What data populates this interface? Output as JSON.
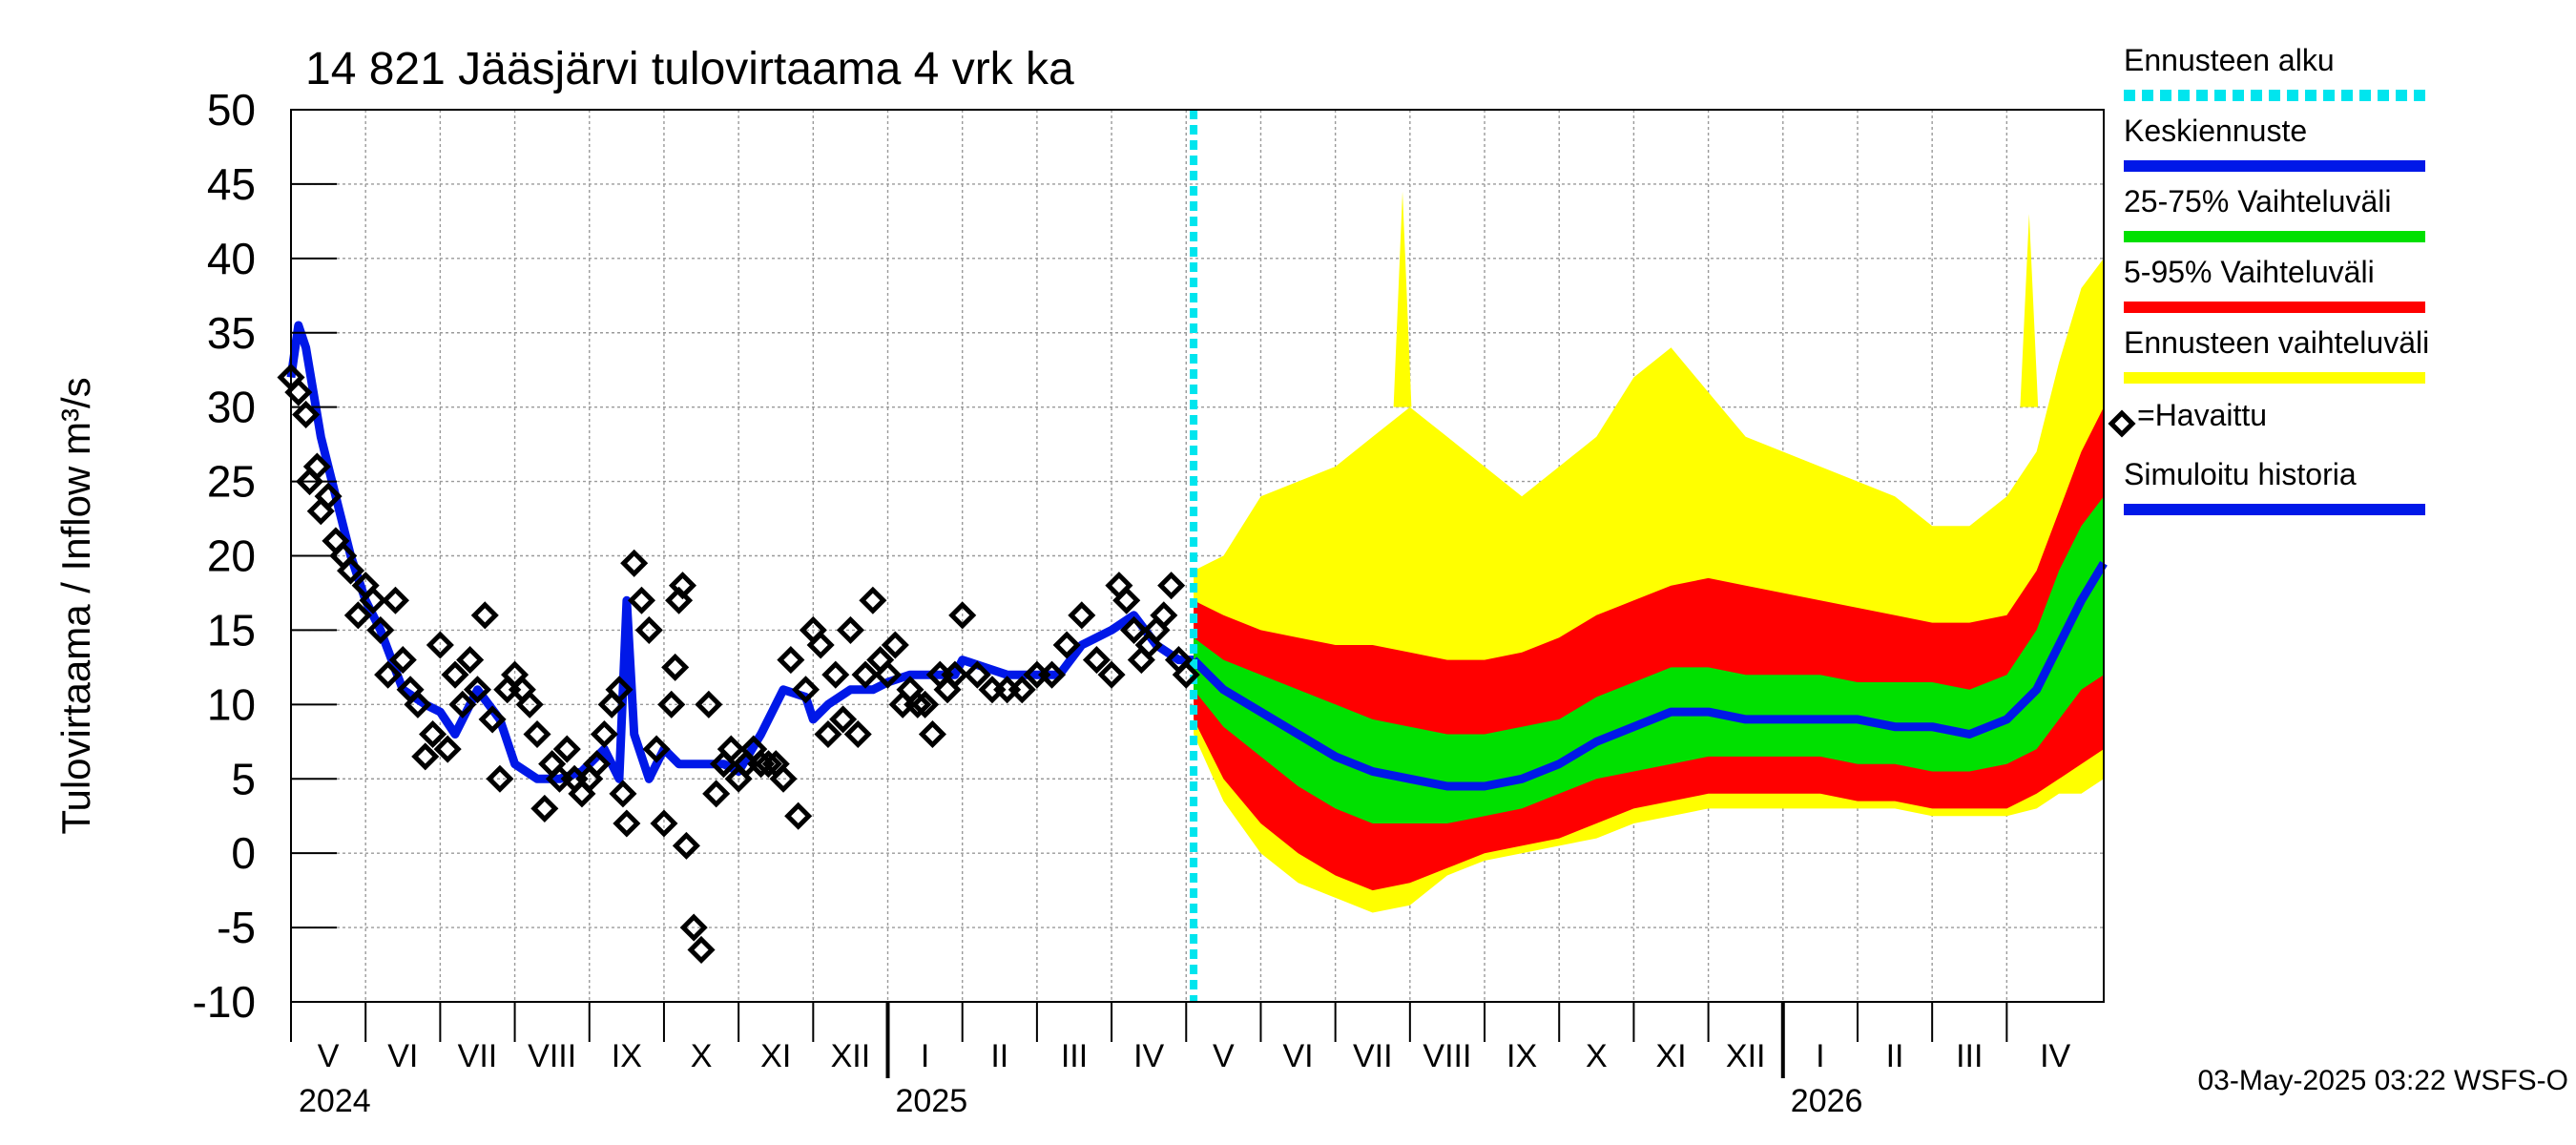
{
  "chart_data": {
    "type": "line",
    "title": "14 821 Jääsjärvi tulovirtaama 4 vrk ka",
    "ylabel": "Tulovirtaama / Inflow    m³/s",
    "ylim": [
      -10,
      50
    ],
    "yticks": [
      50,
      45,
      40,
      35,
      30,
      25,
      20,
      15,
      10,
      5,
      0,
      -5,
      -10
    ],
    "ytick_labels": [
      "50",
      "45",
      "40",
      "35",
      "30",
      "25",
      "20",
      "15",
      "10",
      "5",
      "0",
      "-5",
      "-10"
    ],
    "xlim": [
      0,
      24.3
    ],
    "months": [
      {
        "label": "V",
        "start": 0
      },
      {
        "label": "VI",
        "start": 1
      },
      {
        "label": "VII",
        "start": 2
      },
      {
        "label": "VIII",
        "start": 3
      },
      {
        "label": "IX",
        "start": 4
      },
      {
        "label": "X",
        "start": 5
      },
      {
        "label": "XI",
        "start": 6
      },
      {
        "label": "XII",
        "start": 7
      },
      {
        "label": "I",
        "start": 8
      },
      {
        "label": "II",
        "start": 9
      },
      {
        "label": "III",
        "start": 10
      },
      {
        "label": "IV",
        "start": 11
      },
      {
        "label": "V",
        "start": 12
      },
      {
        "label": "VI",
        "start": 13
      },
      {
        "label": "VII",
        "start": 14
      },
      {
        "label": "VIII",
        "start": 15
      },
      {
        "label": "IX",
        "start": 16
      },
      {
        "label": "X",
        "start": 17
      },
      {
        "label": "XI",
        "start": 18
      },
      {
        "label": "XII",
        "start": 19
      },
      {
        "label": "I",
        "start": 20
      },
      {
        "label": "II",
        "start": 21
      },
      {
        "label": "III",
        "start": 22
      },
      {
        "label": "IV",
        "start": 23
      }
    ],
    "years": [
      {
        "label": "2024",
        "at": 0
      },
      {
        "label": "2025",
        "at": 8
      },
      {
        "label": "2026",
        "at": 20
      }
    ],
    "forecast_start": 12.1,
    "forecast": {
      "x": [
        12.1,
        12.5,
        13,
        13.5,
        14,
        14.5,
        15,
        15.5,
        16,
        16.5,
        17,
        17.5,
        18,
        18.5,
        19,
        19.5,
        20,
        20.5,
        21,
        21.5,
        22,
        22.5,
        23,
        23.4,
        23.7,
        24,
        24.3
      ],
      "p50": [
        13,
        11,
        9.5,
        8,
        6.5,
        5.5,
        5,
        4.5,
        4.5,
        5,
        6,
        7.5,
        8.5,
        9.5,
        9.5,
        9,
        9,
        9,
        9,
        8.5,
        8.5,
        8,
        9,
        11,
        14,
        17,
        19.5
      ],
      "p25": [
        11,
        8.5,
        6.5,
        4.5,
        3,
        2,
        2,
        2,
        2.5,
        3,
        4,
        5,
        5.5,
        6,
        6.5,
        6.5,
        6.5,
        6.5,
        6,
        6,
        5.5,
        5.5,
        6,
        7,
        9,
        11,
        12
      ],
      "p75": [
        14.5,
        13,
        12,
        11,
        10,
        9,
        8.5,
        8,
        8,
        8.5,
        9,
        10.5,
        11.5,
        12.5,
        12.5,
        12,
        12,
        12,
        11.5,
        11.5,
        11.5,
        11,
        12,
        15,
        19,
        22,
        24
      ],
      "p05": [
        9,
        5,
        2,
        0,
        -1.5,
        -2.5,
        -2,
        -1,
        0,
        0.5,
        1,
        2,
        3,
        3.5,
        4,
        4,
        4,
        4,
        3.5,
        3.5,
        3,
        3,
        3,
        4,
        5,
        6,
        7
      ],
      "p95": [
        17,
        16,
        15,
        14.5,
        14,
        14,
        13.5,
        13,
        13,
        13.5,
        14.5,
        16,
        17,
        18,
        18.5,
        18,
        17.5,
        17,
        16.5,
        16,
        15.5,
        15.5,
        16,
        19,
        23,
        27,
        30
      ],
      "min": [
        8,
        3.5,
        0,
        -2,
        -3,
        -4,
        -3.5,
        -1.5,
        -0.5,
        0,
        0.5,
        1,
        2,
        2.5,
        3,
        3,
        3,
        3,
        3,
        3,
        2.5,
        2.5,
        2.5,
        3,
        4,
        4,
        5
      ],
      "max": [
        19,
        20,
        24,
        25,
        26,
        28,
        30,
        28,
        26,
        24,
        26,
        28,
        32,
        34,
        31,
        28,
        27,
        26,
        25,
        24,
        22,
        22,
        24,
        27,
        33,
        38,
        40
      ]
    },
    "forecast_max_spikes": [
      {
        "x": 14.9,
        "y": 44.5
      },
      {
        "x": 23.3,
        "y": 43
      }
    ],
    "simulated": {
      "x": [
        0,
        0.1,
        0.2,
        0.4,
        0.6,
        0.8,
        1.0,
        1.2,
        1.5,
        1.8,
        2.0,
        2.2,
        2.5,
        2.8,
        3.0,
        3.3,
        3.6,
        3.9,
        4.2,
        4.4,
        4.5,
        4.6,
        4.8,
        5.0,
        5.2,
        5.5,
        5.8,
        6.0,
        6.3,
        6.6,
        6.9,
        7.0,
        7.2,
        7.5,
        7.8,
        8.0,
        8.3,
        8.6,
        8.9,
        9.0,
        9.3,
        9.6,
        10.0,
        10.3,
        10.6,
        11.0,
        11.3,
        11.6,
        11.9,
        12.1
      ],
      "y": [
        32,
        35.5,
        34,
        28,
        24,
        20,
        17,
        15,
        11,
        10,
        9.5,
        8,
        11,
        9,
        6,
        5,
        5,
        5.5,
        7,
        5,
        17,
        8,
        5,
        7,
        6,
        6,
        6,
        5.5,
        8,
        11,
        10.5,
        9,
        10,
        11,
        11,
        11.5,
        12,
        12,
        12,
        13,
        12.5,
        12,
        12,
        12,
        14,
        15,
        16,
        14,
        13,
        13
      ]
    },
    "observed": {
      "x": [
        0.0,
        0.1,
        0.2,
        0.25,
        0.35,
        0.4,
        0.5,
        0.6,
        0.7,
        0.8,
        0.9,
        1.0,
        1.1,
        1.2,
        1.3,
        1.4,
        1.5,
        1.6,
        1.7,
        1.8,
        1.9,
        2.0,
        2.1,
        2.2,
        2.3,
        2.4,
        2.5,
        2.6,
        2.7,
        2.8,
        2.9,
        3.0,
        3.1,
        3.2,
        3.3,
        3.4,
        3.5,
        3.6,
        3.7,
        3.8,
        3.9,
        4.0,
        4.1,
        4.2,
        4.3,
        4.4,
        4.45,
        4.5,
        4.6,
        4.7,
        4.8,
        4.9,
        5.0,
        5.1,
        5.15,
        5.2,
        5.25,
        5.3,
        5.4,
        5.5,
        5.6,
        5.7,
        5.8,
        5.9,
        6.0,
        6.1,
        6.2,
        6.3,
        6.4,
        6.5,
        6.6,
        6.7,
        6.8,
        6.9,
        7.0,
        7.1,
        7.2,
        7.3,
        7.4,
        7.5,
        7.6,
        7.7,
        7.8,
        7.9,
        8.0,
        8.1,
        8.2,
        8.3,
        8.4,
        8.5,
        8.6,
        8.7,
        8.8,
        8.9,
        9.0,
        9.2,
        9.4,
        9.6,
        9.8,
        10.0,
        10.2,
        10.4,
        10.6,
        10.8,
        11.0,
        11.1,
        11.2,
        11.3,
        11.4,
        11.5,
        11.6,
        11.7,
        11.8,
        11.9,
        12.0
      ],
      "y": [
        32,
        31,
        29.5,
        25,
        26,
        23,
        24,
        21,
        20,
        19,
        16,
        18,
        17,
        15,
        12,
        17,
        13,
        11,
        10,
        6.5,
        8,
        14,
        7,
        12,
        10,
        13,
        11,
        16,
        9,
        5,
        11,
        12,
        11,
        10,
        8,
        3,
        6,
        5,
        7,
        5,
        4,
        5,
        6,
        8,
        10,
        11,
        4,
        2,
        19.5,
        17,
        15,
        7,
        2,
        10,
        12.5,
        17,
        18,
        0.5,
        -5,
        -6.5,
        10,
        4,
        6,
        7,
        5,
        6,
        7,
        6,
        6,
        6,
        5,
        13,
        2.5,
        11,
        15,
        14,
        8,
        12,
        9,
        15,
        8,
        12,
        17,
        13,
        12,
        14,
        10,
        11,
        10,
        10,
        8,
        12,
        11,
        12,
        16,
        12,
        11,
        11,
        11,
        12,
        12,
        14,
        16,
        13,
        12,
        18,
        17,
        15,
        13,
        14,
        15,
        16,
        18,
        13,
        12
      ]
    },
    "legend": [
      {
        "label": "Ennusteen alku",
        "color": "#00e5ee",
        "style": "dashed"
      },
      {
        "label": "Keskiennuste",
        "color": "#0018e8",
        "style": "solid"
      },
      {
        "label": "25-75% Vaihteluväli",
        "color": "#00e000",
        "style": "solid"
      },
      {
        "label": "5-95% Vaihteluväli",
        "color": "#ff0000",
        "style": "solid"
      },
      {
        "label": "Ennusteen vaihteluväli",
        "color": "#ffff00",
        "style": "solid"
      },
      {
        "label": "=Havaittu",
        "color": "#000000",
        "style": "marker"
      },
      {
        "label": "Simuloitu historia",
        "color": "#0018e8",
        "style": "solid"
      }
    ],
    "footer": "03-May-2025 03:22 WSFS-O"
  }
}
